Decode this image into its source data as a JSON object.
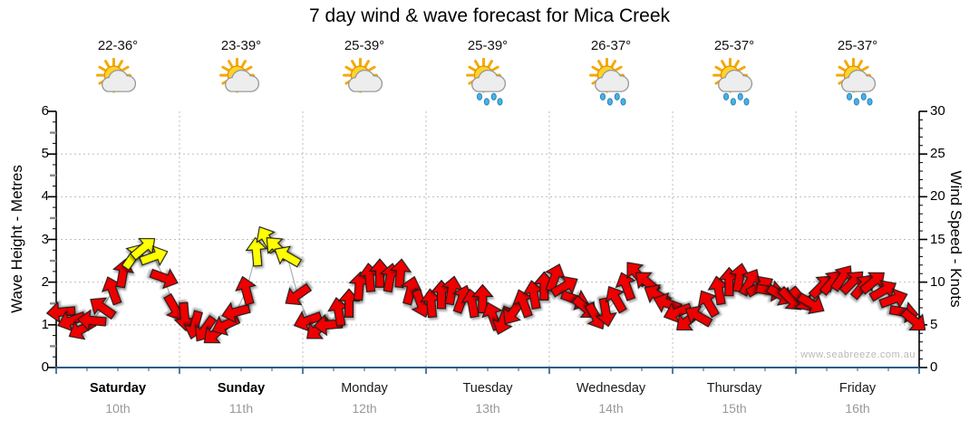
{
  "title": "7 day wind & wave forecast for Mica Creek",
  "watermark": "www.seabreeze.com.au",
  "colors": {
    "arrow_normal": "#ee0000",
    "arrow_strong": "#ffff00",
    "arrow_outline": "#1b1b1b",
    "grid": "#bdbdbd",
    "axis": "#000000",
    "x_axis_line": "#2b5b86",
    "date_gray": "#999999",
    "watermark_gray": "#b9b9b9",
    "trend_line": "#b0b0b0"
  },
  "chart_data": {
    "type": "scatter",
    "marker": "wind-arrow",
    "title": "7 day wind & wave forecast for Mica Creek",
    "legend": "none",
    "grid": "dotted",
    "left_axis": {
      "label": "Wave Height - Metres",
      "min": 0,
      "max": 6,
      "ticks": [
        "0",
        "1",
        "2",
        "3",
        "4",
        "5",
        "6"
      ]
    },
    "right_axis": {
      "label": "Wind Speed - Knots",
      "min": 0,
      "max": 30,
      "ticks": [
        "0",
        "5",
        "10",
        "15",
        "20",
        "25",
        "30"
      ]
    },
    "days": [
      {
        "name": "Saturday",
        "date": "10th",
        "temp": "22-36°",
        "icon": "sun-cloud",
        "weekend": true
      },
      {
        "name": "Sunday",
        "date": "11th",
        "temp": "23-39°",
        "icon": "sun-cloud",
        "weekend": true
      },
      {
        "name": "Monday",
        "date": "12th",
        "temp": "25-39°",
        "icon": "sun-cloud",
        "weekend": false
      },
      {
        "name": "Tuesday",
        "date": "13th",
        "temp": "25-39°",
        "icon": "sun-cloud-rain",
        "weekend": false
      },
      {
        "name": "Wednesday",
        "date": "14th",
        "temp": "26-37°",
        "icon": "sun-cloud-rain",
        "weekend": false
      },
      {
        "name": "Thursday",
        "date": "15th",
        "temp": "25-37°",
        "icon": "sun-cloud-rain",
        "weekend": false
      },
      {
        "name": "Friday",
        "date": "16th",
        "temp": "25-37°",
        "icon": "sun-cloud-rain",
        "weekend": false
      }
    ],
    "wind_series": {
      "units": "knots",
      "points_per_day": 12,
      "strong_threshold_knots": 13,
      "direction_convention": "degrees arrow points toward, 0 = up/N, 90 = right/E",
      "points": [
        [
          6.5,
          265
        ],
        [
          5.5,
          250
        ],
        [
          4.5,
          240
        ],
        [
          5.5,
          275
        ],
        [
          7,
          305
        ],
        [
          9,
          340
        ],
        [
          11,
          10
        ],
        [
          13,
          35
        ],
        [
          14,
          50
        ],
        [
          13,
          70
        ],
        [
          10.5,
          110
        ],
        [
          7,
          150
        ],
        [
          6,
          175
        ],
        [
          5,
          195
        ],
        [
          4.5,
          215
        ],
        [
          4,
          230
        ],
        [
          5,
          245
        ],
        [
          6.5,
          255
        ],
        [
          9,
          345
        ],
        [
          13.5,
          355
        ],
        [
          15,
          330
        ],
        [
          14,
          315
        ],
        [
          13,
          300
        ],
        [
          8.5,
          235
        ],
        [
          5.5,
          250
        ],
        [
          4.5,
          230
        ],
        [
          5,
          265
        ],
        [
          6.5,
          350
        ],
        [
          7.5,
          0
        ],
        [
          9.5,
          5
        ],
        [
          10.5,
          355
        ],
        [
          11,
          0
        ],
        [
          10.5,
          10
        ],
        [
          11,
          5
        ],
        [
          9,
          15
        ],
        [
          7.5,
          160
        ],
        [
          7.5,
          355
        ],
        [
          8.5,
          0
        ],
        [
          9,
          10
        ],
        [
          8,
          20
        ],
        [
          7.5,
          350
        ],
        [
          8,
          0
        ],
        [
          6,
          340
        ],
        [
          5.5,
          200
        ],
        [
          6.5,
          215
        ],
        [
          7.5,
          340
        ],
        [
          8.5,
          350
        ],
        [
          9.5,
          0
        ],
        [
          10.5,
          20
        ],
        [
          9.5,
          60
        ],
        [
          8,
          110
        ],
        [
          7,
          130
        ],
        [
          6,
          150
        ],
        [
          6.5,
          170
        ],
        [
          8,
          330
        ],
        [
          9.5,
          340
        ],
        [
          11,
          320
        ],
        [
          10,
          310
        ],
        [
          8.5,
          300
        ],
        [
          7.5,
          290
        ],
        [
          6.5,
          250
        ],
        [
          5.5,
          230
        ],
        [
          6,
          300
        ],
        [
          7.5,
          330
        ],
        [
          9,
          350
        ],
        [
          10,
          0
        ],
        [
          10.5,
          10
        ],
        [
          10,
          30
        ],
        [
          9.5,
          60
        ],
        [
          9,
          100
        ],
        [
          8.5,
          120
        ],
        [
          8,
          135
        ],
        [
          8,
          140
        ],
        [
          7.5,
          120
        ],
        [
          9.5,
          45
        ],
        [
          10,
          40
        ],
        [
          10.5,
          35
        ],
        [
          10,
          45
        ],
        [
          9.5,
          40
        ],
        [
          10,
          50
        ],
        [
          9,
          60
        ],
        [
          8,
          70
        ],
        [
          6.5,
          100
        ],
        [
          5.5,
          130
        ]
      ]
    }
  }
}
